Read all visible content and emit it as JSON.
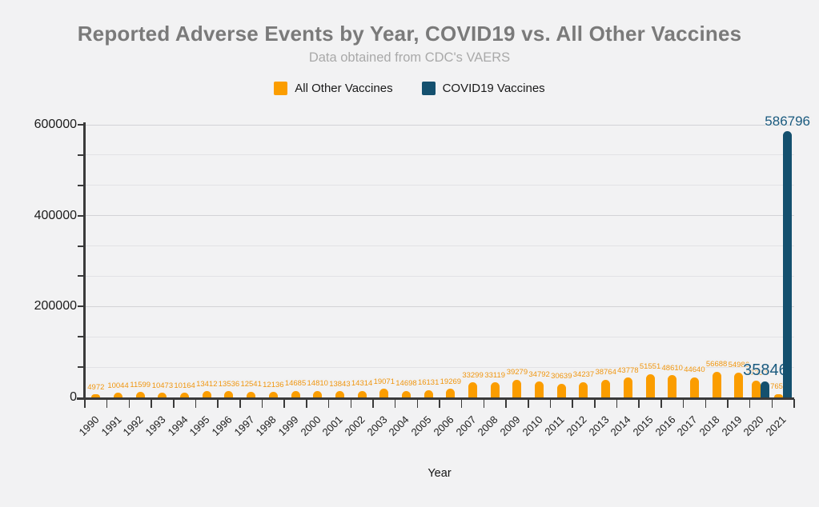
{
  "page": {
    "title": "Reported Adverse Events by Year, COVID19 vs. All Other Vaccines",
    "subtitle": "Data obtained from CDC's VAERS"
  },
  "chart_data": {
    "type": "bar",
    "title": "Reported Adverse Events by Year, COVID19 vs. All Other Vaccines",
    "subtitle": "Data obtained from CDC's VAERS",
    "xlabel": "Year",
    "ylabel": "",
    "ylim": [
      0,
      600000
    ],
    "yticks": [
      0,
      200000,
      400000,
      600000
    ],
    "minor_ticks_per_major": 3,
    "grid": "horizontal",
    "legend_position": "top-center",
    "categories": [
      "1990",
      "1991",
      "1992",
      "1993",
      "1994",
      "1995",
      "1996",
      "1997",
      "1998",
      "1999",
      "2000",
      "2001",
      "2002",
      "2003",
      "2004",
      "2005",
      "2006",
      "2007",
      "2008",
      "2009",
      "2010",
      "2011",
      "2012",
      "2013",
      "2014",
      "2015",
      "2016",
      "2017",
      "2018",
      "2019",
      "2020",
      "2021"
    ],
    "series": [
      {
        "name": "All Other Vaccines",
        "color": "#fb9d00",
        "label_color": "#ef950e",
        "values": [
          4972,
          10044,
          11599,
          10473,
          10164,
          13412,
          13536,
          12541,
          12136,
          14685,
          14810,
          13843,
          14314,
          19071,
          14698,
          16131,
          19269,
          33299,
          33119,
          39279,
          34792,
          30639,
          34237,
          38764,
          43778,
          51551,
          48610,
          44640,
          56688,
          54986,
          37290,
          7659
        ]
      },
      {
        "name": "COVID19 Vaccines",
        "color": "#14506e",
        "label_color": "#1a5a7e",
        "values": [
          null,
          null,
          null,
          null,
          null,
          null,
          null,
          null,
          null,
          null,
          null,
          null,
          null,
          null,
          null,
          null,
          null,
          null,
          null,
          null,
          null,
          null,
          null,
          null,
          null,
          null,
          null,
          null,
          null,
          null,
          35846,
          586796
        ]
      }
    ],
    "annotations": {
      "emphasized_value": 35846,
      "max_value_label": "586796"
    }
  },
  "colors": {
    "background": "#f2f2f3",
    "axis": "#3a3a3a",
    "gridline_major": "#d3d3d6",
    "gridline_minor": "#e2e2e5",
    "title_gray": "#7a7a7a",
    "subtitle_gray": "#a9a9a9"
  }
}
